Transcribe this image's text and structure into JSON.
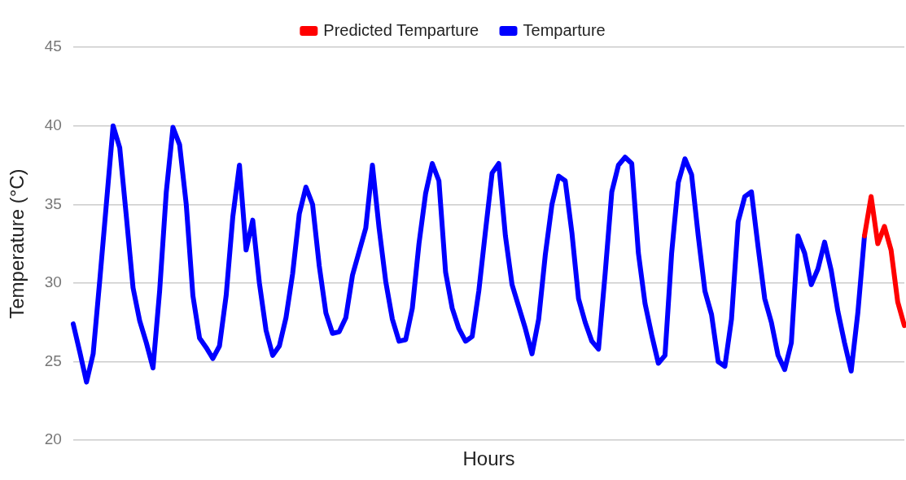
{
  "chart_data": {
    "type": "line",
    "xlabel": "Hours",
    "ylabel": "Temperature (°C)",
    "categories": [
      null,
      null,
      null,
      null,
      null,
      null,
      null,
      null,
      null,
      null,
      null,
      null,
      null,
      null,
      null,
      null,
      null,
      null,
      null,
      null,
      null,
      null,
      null,
      null,
      null,
      null,
      null,
      null,
      null,
      null,
      null,
      null,
      null,
      null,
      null,
      null,
      null,
      null,
      null,
      null,
      null,
      null,
      null,
      null,
      null,
      null,
      null,
      null,
      null,
      null,
      null,
      null,
      null,
      null,
      null,
      null,
      null,
      null,
      null,
      null,
      null,
      null,
      null,
      null,
      null,
      null,
      null,
      null,
      null,
      null,
      null,
      null,
      null,
      null,
      null,
      null,
      null,
      null,
      null,
      null,
      null,
      null,
      null,
      null,
      null,
      null,
      null,
      null,
      null,
      null,
      null,
      null,
      null,
      null,
      null,
      null,
      null,
      null,
      null,
      null,
      null,
      null,
      null,
      null,
      null,
      null,
      null,
      null,
      null,
      null,
      null,
      null,
      null,
      null,
      null,
      null,
      null,
      null,
      null,
      null,
      null,
      null,
      null,
      null,
      null,
      null
    ],
    "series": [
      {
        "name": "Predicted Temparture",
        "color": "#ff0000",
        "values": [
          null,
          null,
          null,
          null,
          null,
          null,
          null,
          null,
          null,
          null,
          null,
          null,
          null,
          null,
          null,
          null,
          null,
          null,
          null,
          null,
          null,
          null,
          null,
          null,
          null,
          null,
          null,
          null,
          null,
          null,
          null,
          null,
          null,
          null,
          null,
          null,
          null,
          null,
          null,
          null,
          null,
          null,
          null,
          null,
          null,
          null,
          null,
          null,
          null,
          null,
          null,
          null,
          null,
          null,
          null,
          null,
          null,
          null,
          null,
          null,
          null,
          null,
          null,
          null,
          null,
          null,
          null,
          null,
          null,
          null,
          null,
          null,
          null,
          null,
          null,
          null,
          null,
          null,
          null,
          null,
          null,
          null,
          null,
          null,
          null,
          null,
          null,
          null,
          null,
          null,
          null,
          null,
          null,
          null,
          null,
          null,
          null,
          null,
          null,
          null,
          null,
          null,
          null,
          null,
          null,
          null,
          null,
          null,
          null,
          null,
          null,
          null,
          null,
          null,
          null,
          null,
          null,
          null,
          null,
          33.0,
          35.5,
          32.5,
          33.6,
          32.1,
          28.8,
          27.3
        ]
      },
      {
        "name": "Temparture",
        "color": "#0000ff",
        "values": [
          27.4,
          25.6,
          23.7,
          25.5,
          30.2,
          35.1,
          40.0,
          38.6,
          34.2,
          29.7,
          27.6,
          26.2,
          24.6,
          29.5,
          35.8,
          39.9,
          38.8,
          35.0,
          29.2,
          26.5,
          25.9,
          25.2,
          26.0,
          29.2,
          34.2,
          37.5,
          32.1,
          34.0,
          30.0,
          27.0,
          25.4,
          26.0,
          27.8,
          30.6,
          34.4,
          36.1,
          35.0,
          31.1,
          28.1,
          26.8,
          26.9,
          27.8,
          30.5,
          32.0,
          33.5,
          37.5,
          33.5,
          30.1,
          27.7,
          26.3,
          26.4,
          28.4,
          32.5,
          35.7,
          37.6,
          36.5,
          30.7,
          28.4,
          27.1,
          26.3,
          26.6,
          29.5,
          33.3,
          37.0,
          37.6,
          33.0,
          29.9,
          28.5,
          27.1,
          25.5,
          27.7,
          31.8,
          35.0,
          36.8,
          36.5,
          33.2,
          29.0,
          27.5,
          26.3,
          25.8,
          30.6,
          35.8,
          37.5,
          38.0,
          37.6,
          31.9,
          28.7,
          26.7,
          24.9,
          25.4,
          31.9,
          36.4,
          37.9,
          36.9,
          33.0,
          29.5,
          28.0,
          25.0,
          24.7,
          27.7,
          33.9,
          35.5,
          35.8,
          32.3,
          29.0,
          27.5,
          25.4,
          24.5,
          26.2,
          33.0,
          31.9,
          29.9,
          30.9,
          32.6,
          30.8,
          28.2,
          26.2,
          24.4,
          28.1,
          33.0,
          null,
          null,
          null,
          null,
          null,
          null
        ]
      }
    ],
    "ylim": [
      20,
      45
    ],
    "yticks": [
      20,
      25,
      30,
      35,
      40,
      45
    ],
    "grid": "y",
    "legend": "top",
    "tick_labels": "y",
    "marker": "none",
    "line_style": "solid"
  }
}
